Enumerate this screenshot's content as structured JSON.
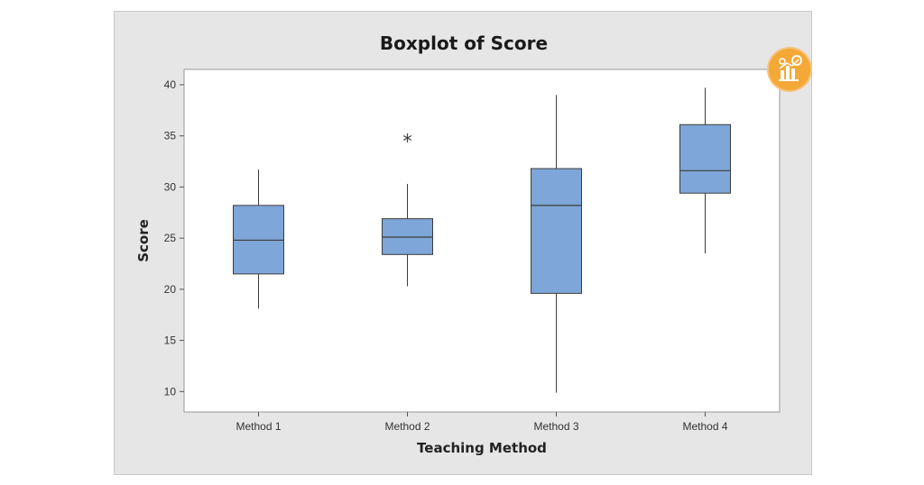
{
  "chart_data": {
    "type": "boxplot",
    "title": "Boxplot of Score",
    "xlabel": "Teaching Method",
    "ylabel": "Score",
    "ylim": [
      8,
      41.5
    ],
    "yticks": [
      10,
      15,
      20,
      25,
      30,
      35,
      40
    ],
    "categories": [
      "Method 1",
      "Method 2",
      "Method 3",
      "Method 4"
    ],
    "boxes": [
      {
        "name": "Method 1",
        "min": 18.1,
        "q1": 21.5,
        "median": 24.8,
        "q3": 28.2,
        "max": 31.7,
        "outliers": []
      },
      {
        "name": "Method 2",
        "min": 20.3,
        "q1": 23.4,
        "median": 25.1,
        "q3": 26.9,
        "max": 30.3,
        "outliers": [
          34.8
        ]
      },
      {
        "name": "Method 3",
        "min": 9.9,
        "q1": 19.6,
        "median": 28.2,
        "q3": 31.8,
        "max": 39.0,
        "outliers": []
      },
      {
        "name": "Method 4",
        "min": 23.5,
        "q1": 29.4,
        "median": 31.6,
        "q3": 36.1,
        "max": 39.7,
        "outliers": []
      }
    ],
    "grid": false,
    "legend": "none"
  },
  "colors": {
    "box_fill": "#7ea6d8",
    "box_stroke": "#3c3c3c",
    "plot_bg": "#ffffff",
    "frame_bg": "#e6e6e6",
    "badge": "#f4a836"
  },
  "badge": {
    "icon": "analytics-chart-icon"
  }
}
